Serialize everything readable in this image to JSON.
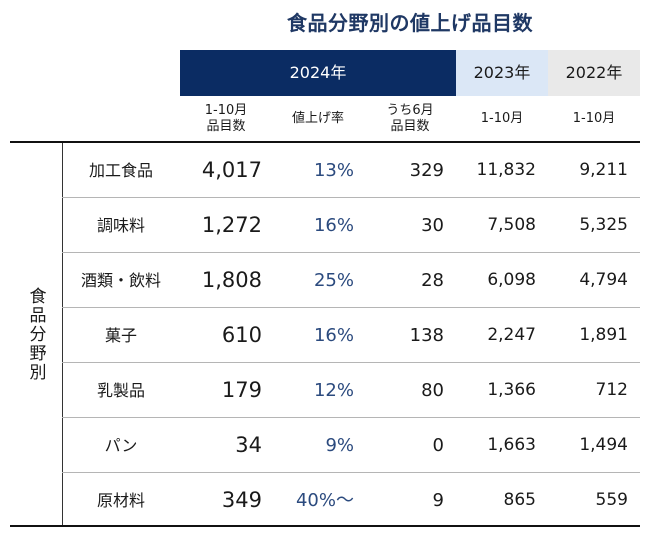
{
  "title": "食品分野別の値上げ品目数",
  "headers": {
    "year_2024": "2024年",
    "year_2023": "2023年",
    "year_2022": "2022年"
  },
  "subheaders": {
    "items_2024_line1": "1-10月",
    "items_2024_line2": "品目数",
    "rate_2024": "値上げ率",
    "june_line1": "うち6月",
    "june_line2": "品目数",
    "period_2023": "1-10月",
    "period_2022": "1-10月"
  },
  "row_group_label": "食品分野別",
  "rows": [
    {
      "category": "加工食品",
      "items_2024": "4,017",
      "rate_2024": "13%",
      "june_2024": "329",
      "items_2023": "11,832",
      "items_2022": "9,211"
    },
    {
      "category": "調味料",
      "items_2024": "1,272",
      "rate_2024": "16%",
      "june_2024": "30",
      "items_2023": "7,508",
      "items_2022": "5,325"
    },
    {
      "category": "酒類・飲料",
      "items_2024": "1,808",
      "rate_2024": "25%",
      "june_2024": "28",
      "items_2023": "6,098",
      "items_2022": "4,794"
    },
    {
      "category": "菓子",
      "items_2024": "610",
      "rate_2024": "16%",
      "june_2024": "138",
      "items_2023": "2,247",
      "items_2022": "1,891"
    },
    {
      "category": "乳製品",
      "items_2024": "179",
      "rate_2024": "12%",
      "june_2024": "80",
      "items_2023": "1,366",
      "items_2022": "712"
    },
    {
      "category": "パン",
      "items_2024": "34",
      "rate_2024": "9%",
      "june_2024": "0",
      "items_2023": "1,663",
      "items_2022": "1,494"
    },
    {
      "category": "原材料",
      "items_2024": "349",
      "rate_2024": "40%～",
      "june_2024": "9",
      "items_2023": "865",
      "items_2022": "559"
    }
  ],
  "colors": {
    "header_2024_bg": "#0b2c63",
    "header_2023_bg": "#dbe7f6",
    "header_2022_bg": "#e9e9e9",
    "title": "#1f3864",
    "rate_text": "#2b4a7e"
  },
  "chart_data": {
    "type": "table",
    "title": "食品分野別の値上げ品目数",
    "columns": [
      "2024年 1-10月 品目数",
      "2024年 値上げ率",
      "2024年 うち6月 品目数",
      "2023年 1-10月",
      "2022年 1-10月"
    ],
    "categories": [
      "加工食品",
      "調味料",
      "酒類・飲料",
      "菓子",
      "乳製品",
      "パン",
      "原材料"
    ],
    "series": [
      {
        "name": "2024年 1-10月 品目数",
        "values": [
          4017,
          1272,
          1808,
          610,
          179,
          34,
          349
        ]
      },
      {
        "name": "2024年 値上げ率",
        "values": [
          "13%",
          "16%",
          "25%",
          "16%",
          "12%",
          "9%",
          "40%～"
        ]
      },
      {
        "name": "2024年 うち6月 品目数",
        "values": [
          329,
          30,
          28,
          138,
          80,
          0,
          9
        ]
      },
      {
        "name": "2023年 1-10月",
        "values": [
          11832,
          7508,
          6098,
          2247,
          1366,
          1663,
          865
        ]
      },
      {
        "name": "2022年 1-10月",
        "values": [
          9211,
          5325,
          4794,
          1891,
          712,
          1494,
          559
        ]
      }
    ]
  }
}
